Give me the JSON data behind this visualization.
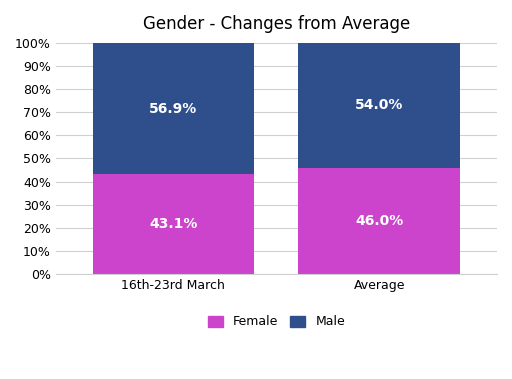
{
  "title": "Gender - Changes from Average",
  "categories": [
    "16th-23rd March",
    "Average"
  ],
  "female_values": [
    43.1,
    46.0
  ],
  "male_values": [
    56.9,
    54.0
  ],
  "female_color": "#CC44CC",
  "male_color": "#2E4F8C",
  "female_label": "Female",
  "male_label": "Male",
  "ylim": [
    0,
    100
  ],
  "ytick_labels": [
    "0%",
    "10%",
    "20%",
    "30%",
    "40%",
    "50%",
    "60%",
    "70%",
    "80%",
    "90%",
    "100%"
  ],
  "ytick_values": [
    0,
    10,
    20,
    30,
    40,
    50,
    60,
    70,
    80,
    90,
    100
  ],
  "background_color": "#FFFFFF",
  "grid_color": "#D0D0D0",
  "title_fontsize": 12,
  "label_fontsize": 10,
  "tick_fontsize": 9,
  "bar_width": 0.55,
  "text_color_white": "#FFFFFF"
}
